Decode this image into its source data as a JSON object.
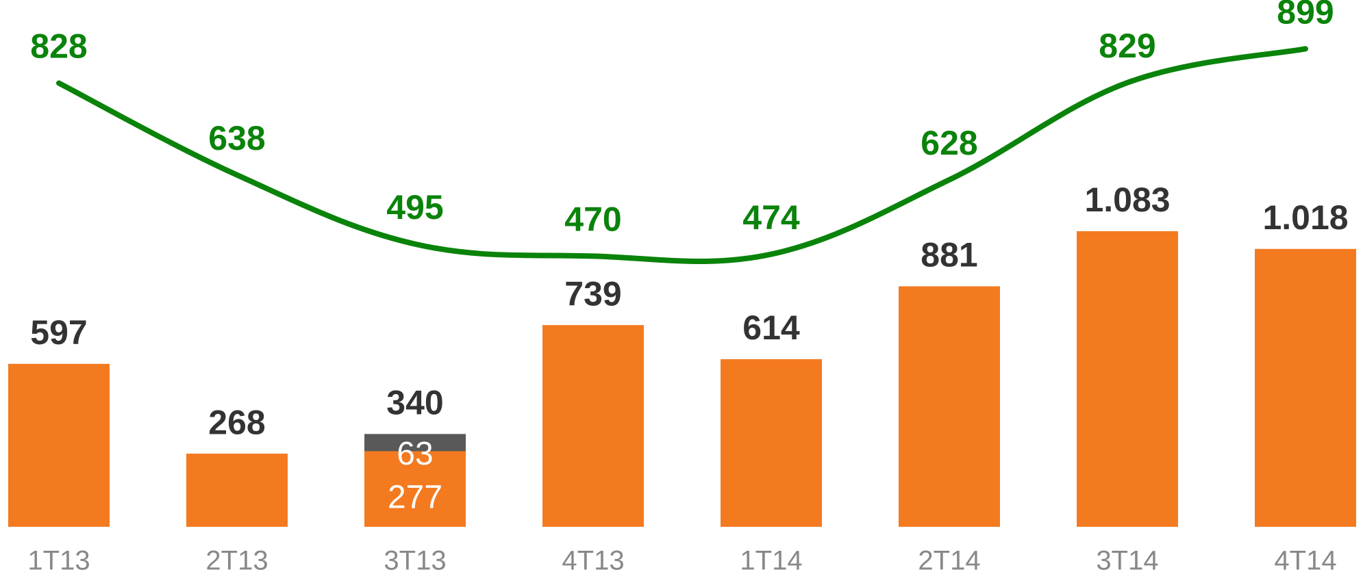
{
  "chart_data": {
    "type": "bar",
    "categories": [
      "1T13",
      "2T13",
      "3T13",
      "4T13",
      "1T14",
      "2T14",
      "3T14",
      "4T14"
    ],
    "series": [
      {
        "color": "#f47a20",
        "values": [
          597,
          268,
          277,
          739,
          614,
          881,
          1083,
          1018
        ],
        "value_labels": [
          "597",
          "268",
          "277",
          "739",
          "614",
          "881",
          "1.083",
          "1.018"
        ]
      },
      {
        "color": "#595959",
        "values": [
          null,
          null,
          63,
          null,
          null,
          null,
          null,
          null
        ]
      },
      {
        "type": "line",
        "axis": "y2",
        "color": "#0a830a",
        "values": [
          828,
          638,
          495,
          470,
          474,
          628,
          829,
          899
        ]
      }
    ],
    "total_labels": [
      null,
      null,
      "340",
      null,
      null,
      null,
      null,
      null
    ],
    "ylim": [
      0,
      1930
    ],
    "y2lim": [
      -90,
      1000
    ]
  }
}
